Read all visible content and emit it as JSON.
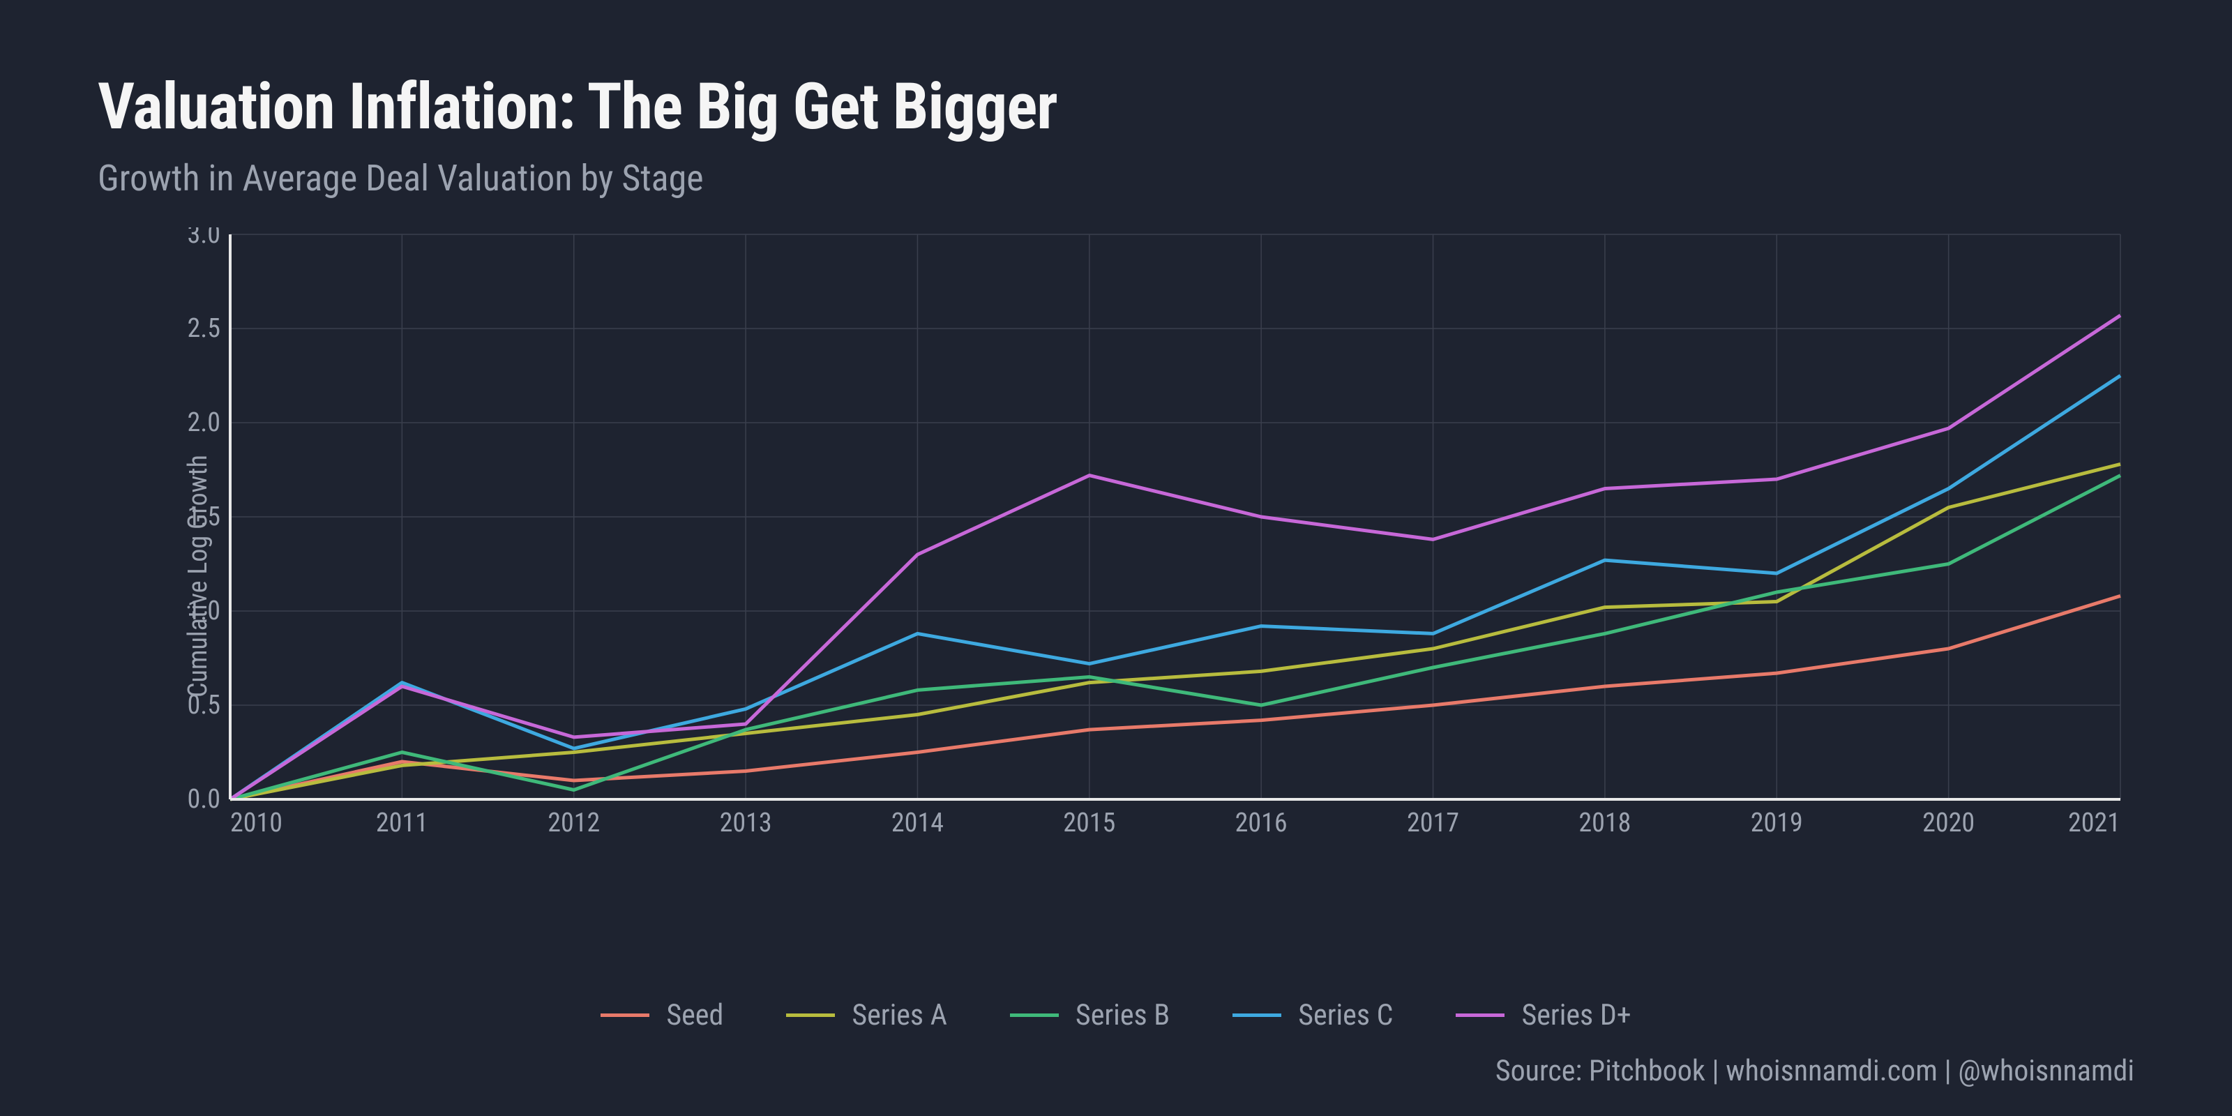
{
  "title": "Valuation Inflation: The Big Get Bigger",
  "subtitle": "Growth in Average Deal Valuation by Stage",
  "ylabel": "Cumulative Log Growth",
  "source": "Source: Pitchbook | whoisnnamdi.com | @whoisnnamdi",
  "chart": {
    "type": "line",
    "background_color": "#1e2330",
    "grid_color": "#3a3f4d",
    "axis_color": "#e8e8e8",
    "tick_label_color": "#9ca3b0",
    "tick_fontsize": 38,
    "title_fontsize": 92,
    "subtitle_fontsize": 52,
    "line_width": 5,
    "x": {
      "values": [
        2010,
        2011,
        2012,
        2013,
        2014,
        2015,
        2016,
        2017,
        2018,
        2019,
        2020,
        2021
      ],
      "lim": [
        2010,
        2021
      ],
      "tick_step": 1
    },
    "y": {
      "lim": [
        0,
        3.0
      ],
      "ticks": [
        0.0,
        0.5,
        1.0,
        1.5,
        2.0,
        2.5,
        3.0
      ],
      "tick_labels": [
        "0.0",
        "0.5",
        "1.0",
        "1.5",
        "2.0",
        "2.5",
        "3.0"
      ]
    },
    "series": [
      {
        "name": "Seed",
        "color": "#e87a6a",
        "values": [
          0.0,
          0.2,
          0.1,
          0.15,
          0.25,
          0.37,
          0.42,
          0.5,
          0.6,
          0.67,
          0.8,
          1.08
        ]
      },
      {
        "name": "Series A",
        "color": "#b8bc3e",
        "values": [
          0.0,
          0.18,
          0.25,
          0.35,
          0.45,
          0.62,
          0.68,
          0.8,
          1.02,
          1.05,
          1.55,
          1.78
        ]
      },
      {
        "name": "Series B",
        "color": "#3fb97a",
        "values": [
          0.0,
          0.25,
          0.05,
          0.37,
          0.58,
          0.65,
          0.5,
          0.7,
          0.88,
          1.1,
          1.25,
          1.72
        ]
      },
      {
        "name": "Series C",
        "color": "#3ea9e0",
        "values": [
          0.0,
          0.62,
          0.27,
          0.48,
          0.88,
          0.72,
          0.92,
          0.88,
          1.27,
          1.2,
          1.65,
          2.25
        ]
      },
      {
        "name": "Series D+",
        "color": "#c768d8",
        "values": [
          0.0,
          0.6,
          0.33,
          0.4,
          1.3,
          1.72,
          1.5,
          1.38,
          1.65,
          1.7,
          1.97,
          2.57
        ]
      }
    ]
  }
}
